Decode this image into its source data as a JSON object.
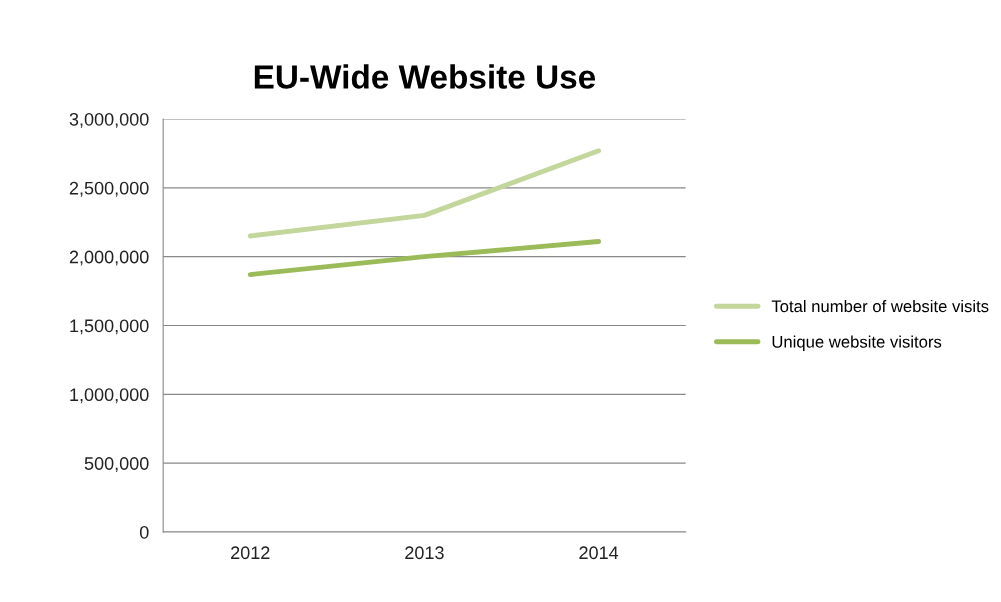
{
  "chart_data": {
    "type": "line",
    "title": "EU-Wide Website Use",
    "categories": [
      "2012",
      "2013",
      "2014"
    ],
    "series": [
      {
        "name": "Total number of website visits",
        "color": "#c3d69b",
        "values": [
          2150000,
          2300000,
          2770000
        ]
      },
      {
        "name": "Unique website visitors",
        "color": "#9bbb59",
        "values": [
          1870000,
          2000000,
          2110000
        ]
      }
    ],
    "ylim": [
      0,
      3000000
    ],
    "yticks": [
      0,
      {
        "value": 500000,
        "label": "500,000"
      },
      {
        "value": 1000000,
        "label": "1,000,000"
      },
      {
        "value": 1500000,
        "label": "1,500,000"
      },
      {
        "value": 2000000,
        "label": "2,000,000"
      },
      {
        "value": 2500000,
        "label": "2,500,000"
      },
      {
        "value": 3000000,
        "label": "3,000,000"
      }
    ],
    "grid": "y",
    "legend": "right",
    "marker": "none",
    "line_style": "solid"
  }
}
